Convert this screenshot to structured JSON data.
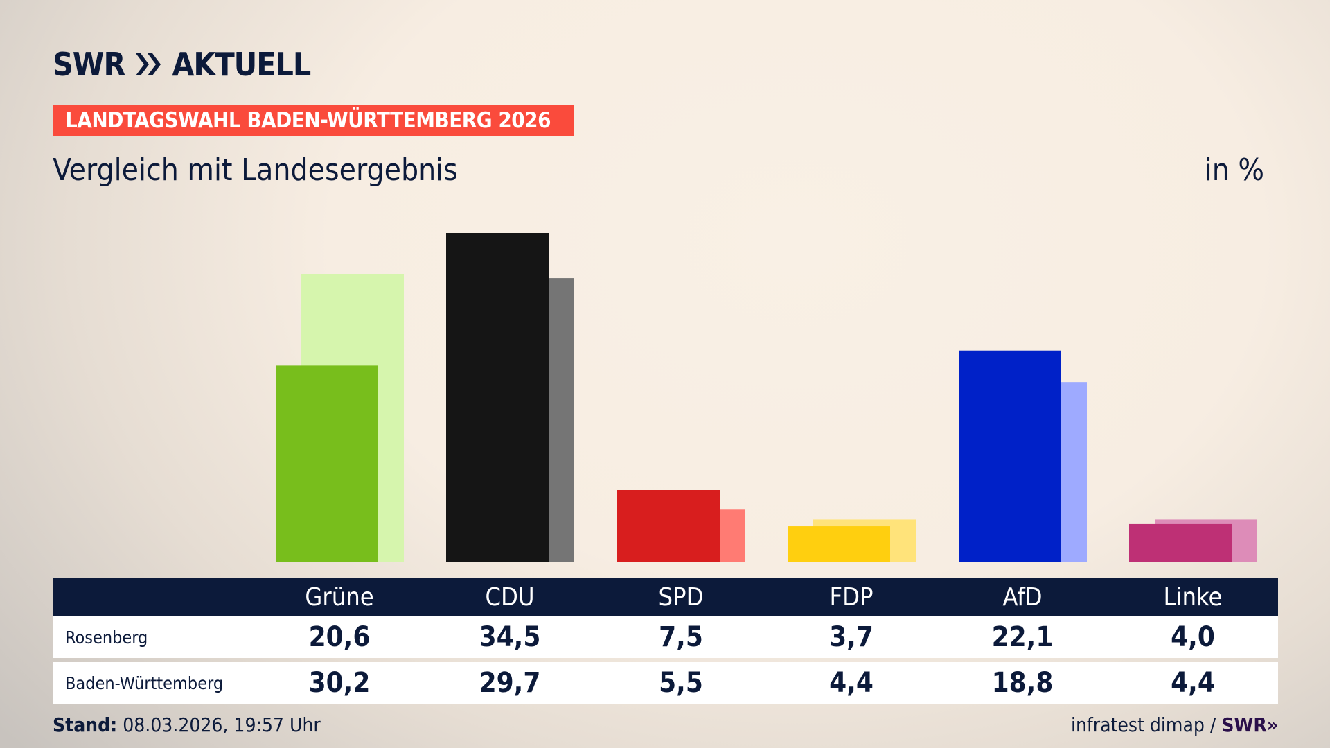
{
  "header": {
    "logo": "SWR» AKTUELL",
    "logo_swr": "SWR",
    "logo_aktuell": "AKTUELL",
    "banner": "LANDTAGSWAHL BADEN-WÜRTTEMBERG 2026",
    "subtitle": "Vergleich mit Landesergebnis",
    "unit": "in %"
  },
  "colors": {
    "navy": "#0c1a3a",
    "banner": "#fa4b3c"
  },
  "chart_data": {
    "type": "bar",
    "title": "Vergleich mit Landesergebnis",
    "ylabel": "in %",
    "categories": [
      "Grüne",
      "CDU",
      "SPD",
      "FDP",
      "AfD",
      "Linke"
    ],
    "series": [
      {
        "name": "Rosenberg",
        "values": [
          20.6,
          34.5,
          7.5,
          3.7,
          22.1,
          4.0
        ],
        "colors": [
          "#78be1c",
          "#151515",
          "#d81e1e",
          "#ffcf0f",
          "#0021c8",
          "#be3075"
        ]
      },
      {
        "name": "Baden-Württemberg",
        "values": [
          30.2,
          29.7,
          5.5,
          4.4,
          18.8,
          4.4
        ],
        "colors": [
          "#d6f5ad",
          "#757575",
          "#ff7b73",
          "#ffe37a",
          "#9eaaff",
          "#dd8cb8"
        ]
      }
    ],
    "ylim": [
      0,
      34.5
    ],
    "grid": false,
    "legend": "table-below"
  },
  "table": {
    "headers": [
      "Grüne",
      "CDU",
      "SPD",
      "FDP",
      "AfD",
      "Linke"
    ],
    "rows": [
      {
        "label": "Rosenberg",
        "values": [
          "20,6",
          "34,5",
          "7,5",
          "3,7",
          "22,1",
          "4,0"
        ]
      },
      {
        "label": "Baden-Württemberg",
        "values": [
          "30,2",
          "29,7",
          "5,5",
          "4,4",
          "18,8",
          "4,4"
        ]
      }
    ]
  },
  "footer": {
    "stand_label": "Stand:",
    "stand_value": "08.03.2026, 19:57 Uhr",
    "source": "infratest dimap /",
    "source_logo": "SWR»"
  }
}
